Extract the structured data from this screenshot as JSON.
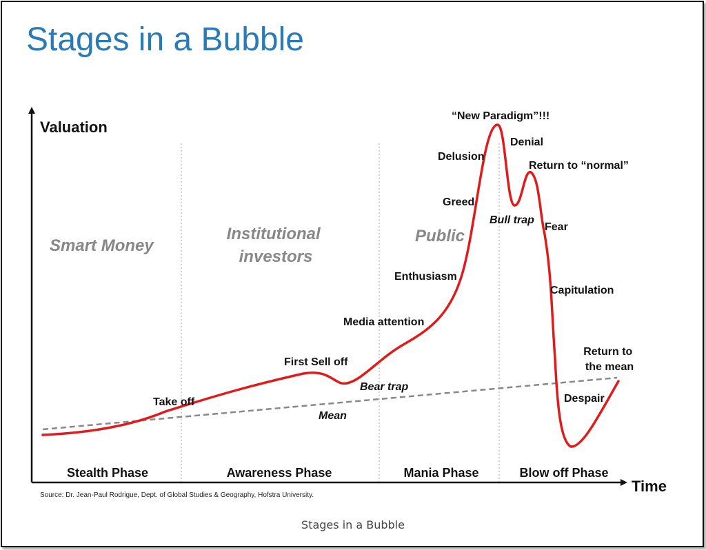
{
  "title": "Stages in a Bubble",
  "caption": "Stages in a Bubble",
  "source": "Source: Dr. Jean-Paul Rodrigue, Dept. of Global Studies & Geography, Hofstra University.",
  "colors": {
    "title": "#2a7ab5",
    "curve": "#e01b1b",
    "mean": "#888888",
    "group_text": "#888888"
  },
  "chart_data": {
    "type": "line",
    "title": "Stages in a Bubble",
    "xlabel": "Time",
    "ylabel": "Valuation",
    "grid": false,
    "phases": [
      "Stealth Phase",
      "Awareness Phase",
      "Mania Phase",
      "Blow off Phase"
    ],
    "groups": [
      "Smart Money",
      "Institutional investors",
      "Public"
    ],
    "series": [
      {
        "name": "Valuation",
        "style": "solid red curve",
        "values": "conceptual bubble curve (no numeric axes)"
      },
      {
        "name": "Mean",
        "style": "dashed grey line"
      }
    ],
    "annotations": [
      {
        "text": "Take off"
      },
      {
        "text": "First Sell off"
      },
      {
        "text": "Bear trap",
        "italic": true
      },
      {
        "text": "Mean",
        "italic": true
      },
      {
        "text": "Media attention"
      },
      {
        "text": "Enthusiasm"
      },
      {
        "text": "Greed"
      },
      {
        "text": "Delusion"
      },
      {
        "text": "“New Paradigm”!!!"
      },
      {
        "text": "Denial"
      },
      {
        "text": "Bull trap",
        "italic": true
      },
      {
        "text": "Return to “normal”"
      },
      {
        "text": "Fear"
      },
      {
        "text": "Capitulation"
      },
      {
        "text": "Despair"
      },
      {
        "text": "Return to the mean"
      }
    ]
  }
}
